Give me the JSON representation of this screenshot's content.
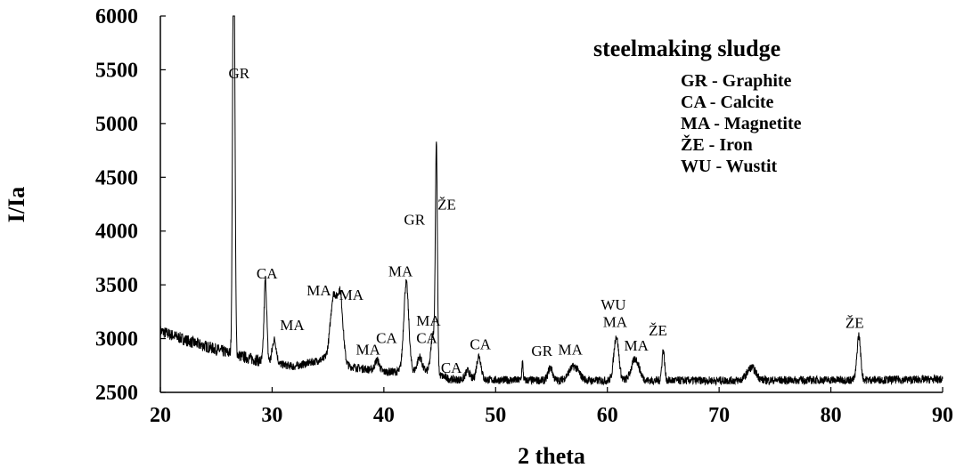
{
  "chart_data": {
    "type": "line",
    "title": "",
    "xlabel": "2 theta",
    "ylabel": "I/Ia",
    "xlim": [
      20,
      90
    ],
    "ylim": [
      2500,
      6000
    ],
    "x_ticks": [
      "20",
      "30",
      "40",
      "50",
      "60",
      "70",
      "80",
      "90"
    ],
    "y_ticks": [
      "2500",
      "3000",
      "3500",
      "4000",
      "4500",
      "5000",
      "5500",
      "6000"
    ],
    "grid": false,
    "legend": {
      "placement": "top-right",
      "title": "steelmaking sludge",
      "entries": [
        "GR - Graphite",
        "CA - Calcite",
        "MA - Magnetite",
        "ŽE - Iron",
        "WU - Wustit"
      ]
    },
    "series": [
      {
        "color": "#000000",
        "peaks": [
          {
            "x": 26.6,
            "y": 6000,
            "w": 0.09
          },
          {
            "x": 26.5,
            "y": 4500,
            "w": 0.08
          },
          {
            "x": 29.4,
            "y": 3550,
            "w": 0.12
          },
          {
            "x": 30.2,
            "y": 2990,
            "w": 0.18
          },
          {
            "x": 35.5,
            "y": 3390,
            "w": 0.28
          },
          {
            "x": 36.1,
            "y": 3380,
            "w": 0.24
          },
          {
            "x": 39.4,
            "y": 2800,
            "w": 0.2
          },
          {
            "x": 42.0,
            "y": 3520,
            "w": 0.22
          },
          {
            "x": 43.2,
            "y": 2830,
            "w": 0.2
          },
          {
            "x": 44.4,
            "y": 3050,
            "w": 0.18
          },
          {
            "x": 44.7,
            "y": 4740,
            "w": 0.09
          },
          {
            "x": 47.5,
            "y": 2700,
            "w": 0.2
          },
          {
            "x": 48.5,
            "y": 2840,
            "w": 0.2
          },
          {
            "x": 52.4,
            "y": 2780,
            "w": 0.06
          },
          {
            "x": 54.9,
            "y": 2730,
            "w": 0.2
          },
          {
            "x": 57.0,
            "y": 2740,
            "w": 0.45
          },
          {
            "x": 60.8,
            "y": 3020,
            "w": 0.22
          },
          {
            "x": 62.5,
            "y": 2810,
            "w": 0.35
          },
          {
            "x": 65.0,
            "y": 2890,
            "w": 0.12
          },
          {
            "x": 72.9,
            "y": 2730,
            "w": 0.4
          },
          {
            "x": 82.5,
            "y": 3030,
            "w": 0.16
          }
        ],
        "baseline": [
          {
            "x": 20,
            "y": 3070
          },
          {
            "x": 23,
            "y": 2960
          },
          {
            "x": 26,
            "y": 2870
          },
          {
            "x": 29,
            "y": 2790
          },
          {
            "x": 32,
            "y": 2740
          },
          {
            "x": 35,
            "y": 2820
          },
          {
            "x": 37,
            "y": 2740
          },
          {
            "x": 40,
            "y": 2690
          },
          {
            "x": 44,
            "y": 2700
          },
          {
            "x": 46,
            "y": 2620
          },
          {
            "x": 55,
            "y": 2610
          },
          {
            "x": 70,
            "y": 2610
          },
          {
            "x": 90,
            "y": 2620
          }
        ]
      }
    ],
    "annotations": [
      {
        "text": "GR",
        "x": 26.1,
        "y": 5420
      },
      {
        "text": "CA",
        "x": 28.6,
        "y": 3560
      },
      {
        "text": "MA",
        "x": 30.7,
        "y": 3080
      },
      {
        "text": "MA",
        "x": 33.1,
        "y": 3400
      },
      {
        "text": "MA",
        "x": 36.0,
        "y": 3360
      },
      {
        "text": "MA",
        "x": 37.5,
        "y": 2850
      },
      {
        "text": "CA",
        "x": 39.3,
        "y": 2960
      },
      {
        "text": "MA",
        "x": 40.4,
        "y": 3580
      },
      {
        "text": "MA",
        "x": 42.9,
        "y": 3120
      },
      {
        "text": "CA",
        "x": 42.9,
        "y": 2960
      },
      {
        "text": "GR",
        "x": 41.8,
        "y": 4060
      },
      {
        "text": "ŽE",
        "x": 44.8,
        "y": 4200
      },
      {
        "text": "CA",
        "x": 45.1,
        "y": 2680
      },
      {
        "text": "CA",
        "x": 47.7,
        "y": 2900
      },
      {
        "text": "GR",
        "x": 53.2,
        "y": 2840
      },
      {
        "text": "MA",
        "x": 55.6,
        "y": 2850
      },
      {
        "text": "WU",
        "x": 59.4,
        "y": 3270
      },
      {
        "text": "MA",
        "x": 59.6,
        "y": 3110
      },
      {
        "text": "MA",
        "x": 61.5,
        "y": 2890
      },
      {
        "text": "ŽE",
        "x": 63.7,
        "y": 3030
      },
      {
        "text": "ŽE",
        "x": 81.3,
        "y": 3100
      }
    ]
  }
}
